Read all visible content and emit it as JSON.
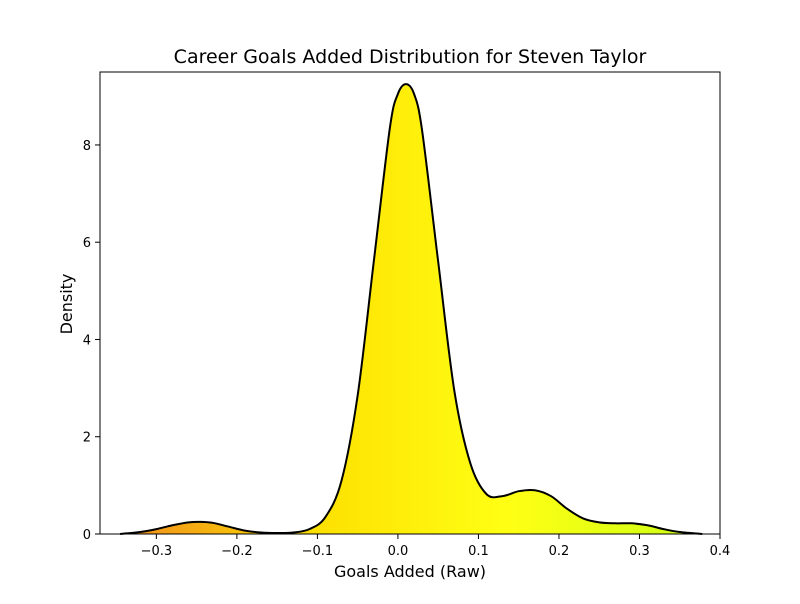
{
  "chart_data": {
    "type": "area",
    "title": "Career Goals Added Distribution for Steven Taylor",
    "xlabel": "Goals Added (Raw)",
    "ylabel": "Density",
    "xlim": [
      -0.37,
      0.4
    ],
    "ylim": [
      0,
      9.5
    ],
    "grid": false,
    "legend": "none",
    "x_ticks": [
      {
        "value": -0.3,
        "label": "−0.3"
      },
      {
        "value": -0.2,
        "label": "−0.2"
      },
      {
        "value": -0.1,
        "label": "−0.1"
      },
      {
        "value": 0.0,
        "label": "0.0"
      },
      {
        "value": 0.1,
        "label": "0.1"
      },
      {
        "value": 0.2,
        "label": "0.2"
      },
      {
        "value": 0.3,
        "label": "0.3"
      },
      {
        "value": 0.4,
        "label": "0.4"
      }
    ],
    "y_ticks": [
      {
        "value": 0,
        "label": "0"
      },
      {
        "value": 2,
        "label": "2"
      },
      {
        "value": 4,
        "label": "4"
      },
      {
        "value": 6,
        "label": "6"
      },
      {
        "value": 8,
        "label": "8"
      }
    ],
    "series": [
      {
        "line_color": "#000000",
        "fill_gradient": [
          "#f08c1e",
          "#fde000",
          "#ffff14",
          "#ccff14"
        ],
        "x": [
          -0.345,
          -0.32,
          -0.3,
          -0.28,
          -0.26,
          -0.245,
          -0.23,
          -0.21,
          -0.19,
          -0.17,
          -0.15,
          -0.13,
          -0.11,
          -0.09,
          -0.07,
          -0.05,
          -0.03,
          -0.01,
          0.0,
          0.01,
          0.02,
          0.03,
          0.05,
          0.07,
          0.09,
          0.11,
          0.13,
          0.15,
          0.17,
          0.19,
          0.21,
          0.23,
          0.25,
          0.27,
          0.29,
          0.31,
          0.33,
          0.35,
          0.378
        ],
        "y": [
          0.0,
          0.04,
          0.1,
          0.18,
          0.24,
          0.25,
          0.23,
          0.15,
          0.07,
          0.03,
          0.02,
          0.03,
          0.1,
          0.35,
          1.1,
          2.85,
          5.6,
          8.35,
          9.05,
          9.25,
          9.05,
          8.3,
          5.6,
          2.95,
          1.45,
          0.82,
          0.78,
          0.88,
          0.9,
          0.78,
          0.52,
          0.32,
          0.24,
          0.22,
          0.22,
          0.18,
          0.1,
          0.04,
          0.0
        ]
      }
    ]
  }
}
